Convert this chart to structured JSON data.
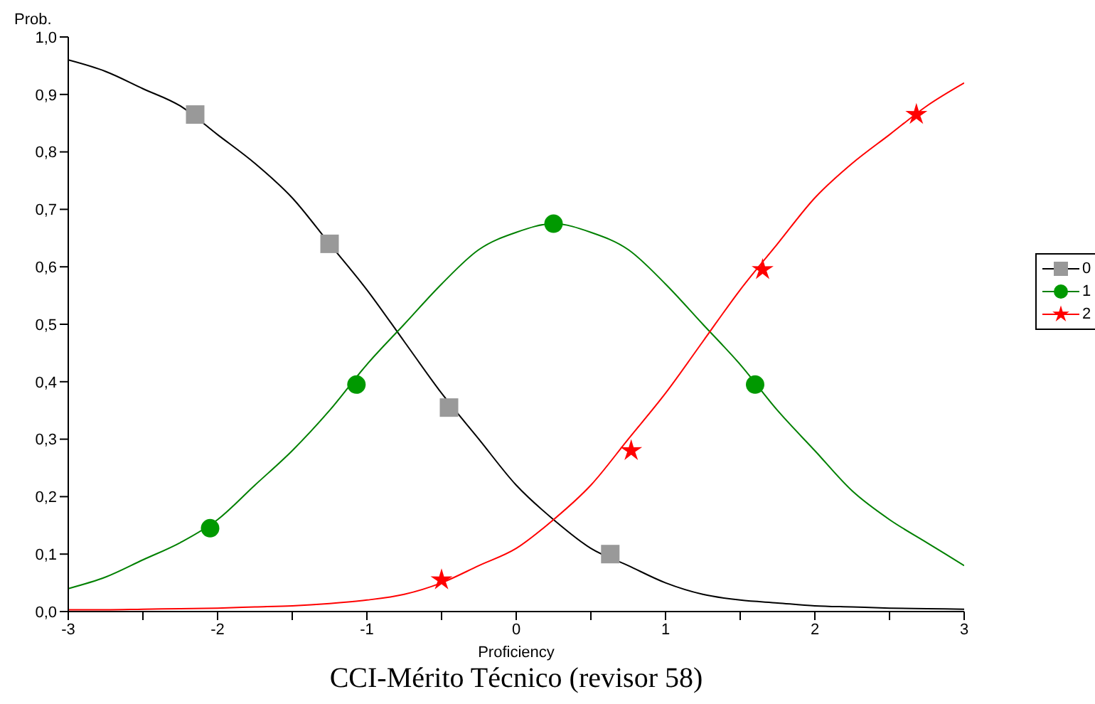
{
  "chart_data": {
    "type": "line",
    "title": "CCI-Mérito Técnico (revisor 58)",
    "xlabel": "Proficiency",
    "ylabel": "Prob.",
    "xlim": [
      -3,
      3
    ],
    "ylim": [
      0,
      1
    ],
    "xticks": [
      -3,
      {
        "value": -2.5,
        "label": null
      },
      -2,
      {
        "value": -1.5,
        "label": null
      },
      -1,
      {
        "value": -0.5,
        "label": null
      },
      0,
      {
        "value": 0.5,
        "label": null
      },
      1,
      {
        "value": 1.5,
        "label": null
      },
      2,
      {
        "value": 2.5,
        "label": null
      },
      3
    ],
    "yticks": [
      {
        "value": 0,
        "label": "0,0"
      },
      {
        "value": 0.1,
        "label": "0,1"
      },
      {
        "value": 0.2,
        "label": "0,2"
      },
      {
        "value": 0.3,
        "label": "0,3"
      },
      {
        "value": 0.4,
        "label": "0,4"
      },
      {
        "value": 0.5,
        "label": "0,5"
      },
      {
        "value": 0.6,
        "label": "0,6"
      },
      {
        "value": 0.7,
        "label": "0,7"
      },
      {
        "value": 0.8,
        "label": "0,8"
      },
      {
        "value": 0.9,
        "label": "0,9"
      },
      {
        "value": 1,
        "label": "1,0"
      }
    ],
    "grid": false,
    "legend": "right",
    "x": [
      -3,
      -2.75,
      -2.5,
      -2.25,
      -2,
      -1.75,
      -1.5,
      -1.25,
      -1,
      -0.75,
      -0.5,
      -0.25,
      0,
      0.25,
      0.5,
      0.75,
      1,
      1.25,
      1.5,
      1.75,
      2,
      2.25,
      2.5,
      2.75,
      3
    ],
    "series": [
      {
        "name": "0",
        "type": "line",
        "marker": "none",
        "color": "#000000",
        "values": [
          0.96,
          0.94,
          0.91,
          0.88,
          0.83,
          0.78,
          0.72,
          0.64,
          0.56,
          0.47,
          0.38,
          0.3,
          0.22,
          0.16,
          0.11,
          0.08,
          0.05,
          0.03,
          0.02,
          0.015,
          0.01,
          0.008,
          0.006,
          0.005,
          0.004
        ]
      },
      {
        "type": "scatter",
        "marker": "square",
        "color": "#999999",
        "x": [
          -2.15,
          -1.25,
          -0.45,
          0.63
        ],
        "values": [
          0.865,
          0.64,
          0.355,
          0.1
        ]
      },
      {
        "name": "1",
        "type": "line",
        "marker": "none",
        "color": "#008000",
        "values": [
          0.04,
          0.06,
          0.09,
          0.12,
          0.16,
          0.22,
          0.28,
          0.35,
          0.43,
          0.5,
          0.57,
          0.63,
          0.66,
          0.675,
          0.66,
          0.63,
          0.57,
          0.5,
          0.43,
          0.35,
          0.28,
          0.21,
          0.16,
          0.12,
          0.08
        ]
      },
      {
        "type": "scatter",
        "marker": "circle",
        "color": "#009900",
        "x": [
          -2.05,
          -1.07,
          0.25,
          1.6
        ],
        "values": [
          0.145,
          0.395,
          0.675,
          0.395
        ]
      },
      {
        "name": "2",
        "type": "line",
        "marker": "none",
        "color": "#ff0000",
        "values": [
          0.003,
          0.003,
          0.004,
          0.005,
          0.006,
          0.008,
          0.01,
          0.014,
          0.02,
          0.03,
          0.05,
          0.08,
          0.11,
          0.16,
          0.22,
          0.3,
          0.38,
          0.47,
          0.56,
          0.64,
          0.72,
          0.78,
          0.83,
          0.88,
          0.92
        ]
      },
      {
        "type": "scatter",
        "marker": "star",
        "color": "#ff0000",
        "x": [
          -0.5,
          0.77,
          1.65,
          2.68
        ],
        "values": [
          0.055,
          0.28,
          0.595,
          0.865
        ]
      }
    ]
  }
}
